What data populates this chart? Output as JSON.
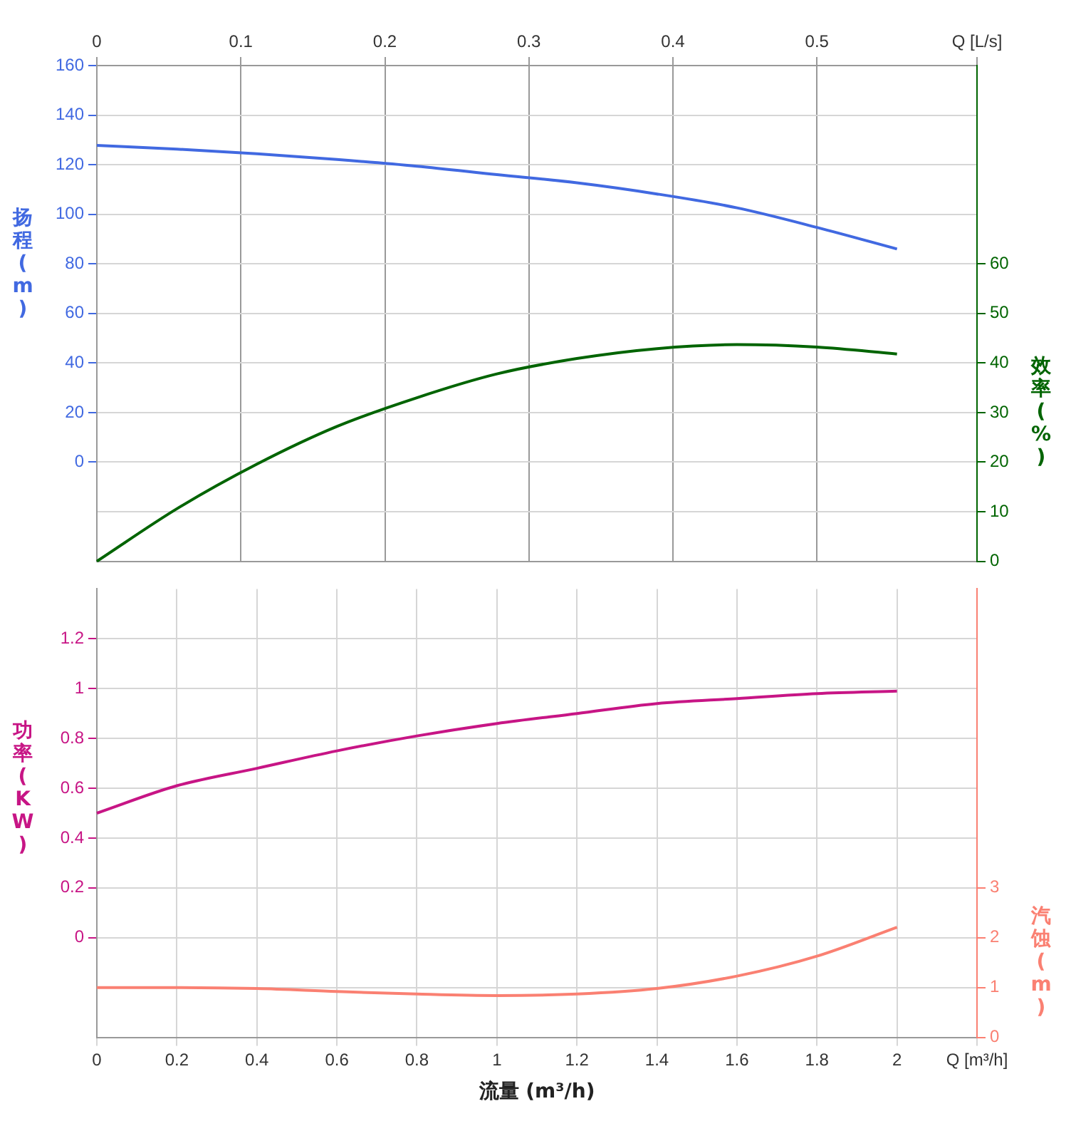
{
  "chart_data": [
    {
      "type": "line",
      "ylabel": "扬程(m)",
      "y2label": "效率(%)",
      "tick_labels": "y",
      "xlim": [
        0,
        2.2
      ],
      "x2lim": [
        0,
        0.6111
      ],
      "x2ticks": [
        0,
        0.1,
        0.2,
        0.3,
        0.4,
        0.5,
        {
          "value": 0.6111,
          "label": "Q [L/s]"
        }
      ],
      "ylim": [
        -40,
        160
      ],
      "yticks": [
        0,
        20,
        40,
        60,
        80,
        100,
        120,
        140,
        160
      ],
      "y2lim": [
        0,
        100
      ],
      "y2ticks": [
        0,
        10,
        20,
        30,
        40,
        50,
        60
      ],
      "grid": true,
      "legend": false,
      "marker": "none",
      "line_style": "solid",
      "x": [
        0,
        0.2,
        0.4,
        0.6,
        0.8,
        1,
        1.2,
        1.4,
        1.6,
        1.8,
        2
      ],
      "series": [
        {
          "color": "#4169e1",
          "values": [
            127.8,
            126.3,
            124.4,
            122.1,
            119.4,
            116,
            112.7,
            108.2,
            102.6,
            94.7,
            86
          ]
        },
        {
          "axis": "y2",
          "color": "#006400",
          "values": [
            0,
            10.6,
            19.6,
            27.2,
            33,
            37.8,
            40.9,
            42.9,
            43.7,
            43.2,
            41.8
          ]
        }
      ]
    },
    {
      "type": "line",
      "xlabel": "流量 (m³/h)",
      "ylabel": "功率(KW)",
      "y2label": "汽蚀(m)",
      "xlim": [
        0,
        2.2
      ],
      "xticks": [
        0,
        0.2,
        0.4,
        0.6,
        0.8,
        1,
        1.2,
        1.4,
        1.6,
        1.8,
        2,
        {
          "value": 2.2,
          "label": "Q [m³/h]"
        }
      ],
      "ylim": [
        -0.4,
        1.4
      ],
      "yticks": [
        0,
        0.2,
        0.4,
        0.6,
        0.8,
        1,
        1.2
      ],
      "y2lim": [
        0,
        9
      ],
      "y2ticks": [
        0,
        1,
        2,
        3
      ],
      "grid": true,
      "legend": false,
      "marker": "none",
      "line_style": "solid",
      "x": [
        0,
        0.2,
        0.4,
        0.6,
        0.8,
        1,
        1.2,
        1.4,
        1.6,
        1.8,
        2
      ],
      "series": [
        {
          "color": "#c71585",
          "values": [
            0.5,
            0.61,
            0.68,
            0.75,
            0.81,
            0.86,
            0.9,
            0.94,
            0.96,
            0.98,
            0.99
          ]
        },
        {
          "axis": "y2",
          "color": "#fa8072",
          "values": [
            1,
            1,
            0.98,
            0.92,
            0.87,
            0.84,
            0.87,
            0.98,
            1.23,
            1.63,
            2.21
          ]
        }
      ]
    }
  ]
}
